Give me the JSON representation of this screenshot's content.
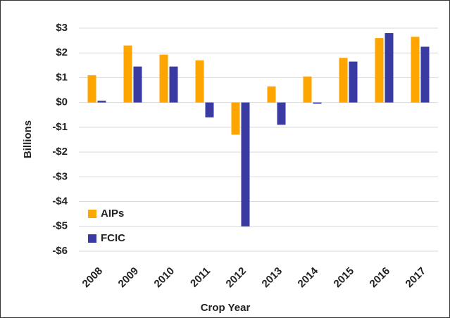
{
  "chart_data": {
    "type": "bar",
    "x_label": "Crop Year",
    "y_label": "Billions",
    "categories": [
      "2008",
      "2009",
      "2010",
      "2011",
      "2012",
      "2013",
      "2014",
      "2015",
      "2016",
      "2017"
    ],
    "series": [
      {
        "name": "AIPs",
        "color": "#ffa500",
        "values": [
          1.1,
          2.3,
          1.93,
          1.7,
          -1.3,
          0.65,
          1.05,
          1.8,
          2.6,
          2.65
        ]
      },
      {
        "name": "FCIC",
        "color": "#3a3aa3",
        "values": [
          0.07,
          1.45,
          1.45,
          -0.6,
          -5.0,
          -0.9,
          -0.05,
          1.65,
          2.8,
          2.25
        ]
      }
    ],
    "ylim": [
      -6,
      3
    ],
    "yticks": [
      {
        "value": -6,
        "label": "-$6"
      },
      {
        "value": -5,
        "label": "-$5"
      },
      {
        "value": -4,
        "label": "-$4"
      },
      {
        "value": -3,
        "label": "-$3"
      },
      {
        "value": -2,
        "label": "-$2"
      },
      {
        "value": -1,
        "label": "-$1"
      },
      {
        "value": 0,
        "label": "$0"
      },
      {
        "value": 1,
        "label": "$1"
      },
      {
        "value": 2,
        "label": "$2"
      },
      {
        "value": 3,
        "label": "$3"
      }
    ],
    "grid": true,
    "legend": "lower left"
  }
}
